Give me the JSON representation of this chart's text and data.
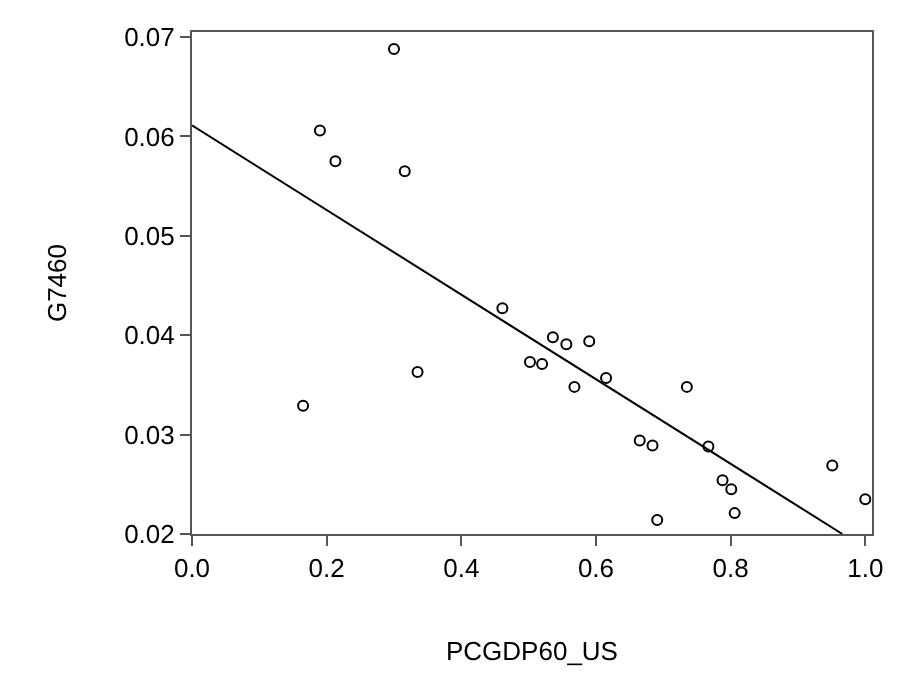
{
  "chart_data": {
    "type": "scatter",
    "xlabel": "PCGDP60_US",
    "ylabel": "G7460",
    "xlim": [
      0,
      1.01
    ],
    "ylim": [
      0.02,
      0.0705
    ],
    "xticks": [
      {
        "value": 0,
        "label": "0.0"
      },
      {
        "value": 0.2,
        "label": "0.2"
      },
      {
        "value": 0.4,
        "label": "0.4"
      },
      {
        "value": 0.6,
        "label": "0.6"
      },
      {
        "value": 0.8,
        "label": "0.8"
      },
      {
        "value": 1,
        "label": "1.0"
      }
    ],
    "yticks": [
      0.02,
      0.03,
      0.04,
      0.05,
      0.06,
      0.07
    ],
    "series": [
      {
        "color": "#000000",
        "marker": "circle",
        "x": [
          0.3,
          0.19,
          0.213,
          0.316,
          0.461,
          0.502,
          0.335,
          0.165,
          0.52,
          0.536,
          0.556,
          0.59,
          0.568,
          0.615,
          0.735,
          0.665,
          0.684,
          0.767,
          0.788,
          0.801,
          0.806,
          0.691,
          0.951,
          1.0
        ],
        "values": [
          0.0688,
          0.0606,
          0.0575,
          0.0565,
          0.0427,
          0.0373,
          0.0363,
          0.0329,
          0.0371,
          0.0398,
          0.0391,
          0.0394,
          0.0348,
          0.0357,
          0.0348,
          0.0294,
          0.0289,
          0.0288,
          0.0254,
          0.0245,
          0.0221,
          0.0214,
          0.0269,
          0.0235
        ]
      },
      {
        "type": "line",
        "color": "#000000",
        "marker": "none",
        "x": [
          0,
          0.966
        ],
        "values": [
          0.0611,
          0.02
        ]
      }
    ]
  }
}
